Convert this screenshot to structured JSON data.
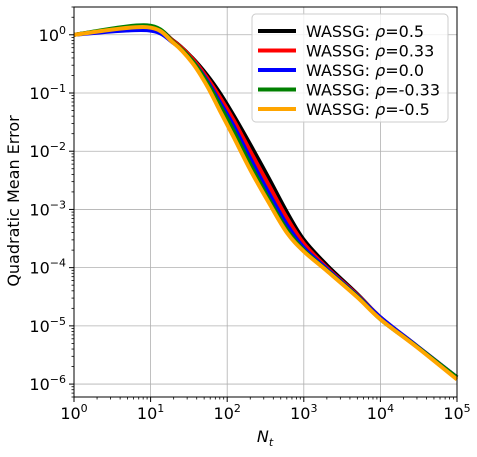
{
  "chart_data": {
    "type": "line",
    "title": "",
    "xlabel": "N",
    "xlabel_sub": "t",
    "ylabel": "Quadratic Mean Error",
    "xscale": "log",
    "yscale": "log",
    "xlim": [
      1,
      100000
    ],
    "ylim": [
      6e-07,
      3
    ],
    "grid": true,
    "legend_position": "upper-right",
    "x_ticks": [
      {
        "value": 1,
        "exp": "0"
      },
      {
        "value": 10,
        "exp": "1"
      },
      {
        "value": 100,
        "exp": "2"
      },
      {
        "value": 1000,
        "exp": "3"
      },
      {
        "value": 10000,
        "exp": "4"
      },
      {
        "value": 100000,
        "exp": "5"
      }
    ],
    "y_ticks": [
      {
        "value": 1,
        "exp": "0"
      },
      {
        "value": 0.1,
        "exp": "−1"
      },
      {
        "value": 0.01,
        "exp": "−2"
      },
      {
        "value": 0.001,
        "exp": "−3"
      },
      {
        "value": 0.0001,
        "exp": "−4"
      },
      {
        "value": 1e-05,
        "exp": "−5"
      },
      {
        "value": 1e-06,
        "exp": "−6"
      }
    ],
    "tick_base": "10",
    "series": [
      {
        "name": "WASSG: ρ=0.5",
        "legend_prefix": "WASSG: ",
        "legend_symbol": "ρ",
        "legend_value": "=0.5",
        "color": "#000000",
        "x": [
          1,
          9,
          20,
          35,
          55,
          80,
          120,
          200,
          350,
          600,
          1000,
          2000,
          5000,
          10000,
          30000,
          100000
        ],
        "y": [
          1.0,
          1.4,
          0.78,
          0.4,
          0.2,
          0.1,
          0.042,
          0.013,
          0.0034,
          0.0009,
          0.0003,
          0.00011,
          3.5e-05,
          1.4e-05,
          4.4e-06,
          1.3e-06
        ]
      },
      {
        "name": "WASSG: ρ=0.33",
        "legend_prefix": "WASSG: ",
        "legend_symbol": "ρ",
        "legend_value": "=0.33",
        "color": "#ff0000",
        "x": [
          1,
          9,
          20,
          35,
          55,
          80,
          120,
          200,
          350,
          600,
          1000,
          2000,
          5000,
          10000,
          30000,
          100000
        ],
        "y": [
          1.0,
          1.38,
          0.77,
          0.39,
          0.18,
          0.085,
          0.035,
          0.01,
          0.0026,
          0.00072,
          0.00026,
          0.0001,
          3.4e-05,
          1.4e-05,
          4.5e-06,
          1.3e-06
        ]
      },
      {
        "name": "WASSG: ρ=0.0",
        "legend_prefix": "WASSG: ",
        "legend_symbol": "ρ",
        "legend_value": "=0.0",
        "color": "#0000ff",
        "x": [
          1,
          9,
          20,
          35,
          55,
          80,
          120,
          200,
          350,
          600,
          1000,
          2000,
          5000,
          10000,
          30000,
          100000
        ],
        "y": [
          1.0,
          1.2,
          0.72,
          0.36,
          0.16,
          0.07,
          0.028,
          0.0075,
          0.0019,
          0.00055,
          0.00022,
          9.5e-05,
          3.3e-05,
          1.4e-05,
          4.5e-06,
          1.3e-06
        ]
      },
      {
        "name": "WASSG: ρ=-0.33",
        "legend_prefix": "WASSG: ",
        "legend_symbol": "ρ",
        "legend_value": "=-0.33",
        "color": "#008000",
        "x": [
          1,
          9,
          20,
          35,
          55,
          80,
          120,
          200,
          350,
          600,
          1000,
          2000,
          5000,
          10000,
          30000,
          100000
        ],
        "y": [
          1.0,
          1.45,
          0.74,
          0.36,
          0.15,
          0.062,
          0.023,
          0.006,
          0.0015,
          0.00045,
          0.0002,
          9e-05,
          3.2e-05,
          1.3e-05,
          4.4e-06,
          1.3e-06
        ]
      },
      {
        "name": "WASSG: ρ=-0.5",
        "legend_prefix": "WASSG: ",
        "legend_symbol": "ρ",
        "legend_value": "=-0.5",
        "color": "#ffa500",
        "x": [
          1,
          9,
          20,
          35,
          55,
          80,
          120,
          200,
          350,
          600,
          1000,
          2000,
          5000,
          10000,
          30000,
          100000
        ],
        "y": [
          1.0,
          1.35,
          0.72,
          0.33,
          0.13,
          0.05,
          0.018,
          0.0048,
          0.0013,
          0.0004,
          0.00019,
          8.8e-05,
          3.1e-05,
          1.3e-05,
          4.3e-06,
          1.2e-06
        ]
      }
    ]
  }
}
